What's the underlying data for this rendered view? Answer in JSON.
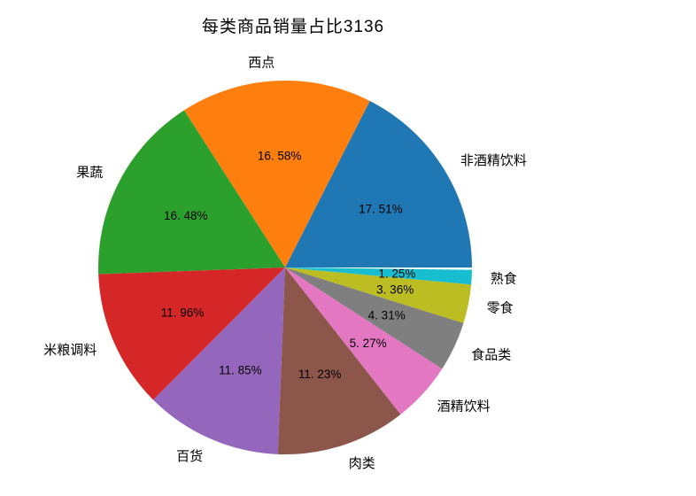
{
  "chart_data": {
    "type": "pie",
    "title": "每类商品销量占比3136",
    "legend": "none",
    "grid": "off",
    "start_angle_deg": 0,
    "direction": "counterclockwise",
    "total_pct_shown": 99.8,
    "slices": [
      {
        "label": "非酒精饮料",
        "value": 17.51,
        "pct_label": "17. 51%",
        "color": "#1f77b4"
      },
      {
        "label": "西点",
        "value": 16.58,
        "pct_label": "16. 58%",
        "color": "#ff7f0e"
      },
      {
        "label": "果蔬",
        "value": 16.48,
        "pct_label": "16. 48%",
        "color": "#2ca02c"
      },
      {
        "label": "米粮调料",
        "value": 11.96,
        "pct_label": "11. 96%",
        "color": "#d62728"
      },
      {
        "label": "百货",
        "value": 11.85,
        "pct_label": "11. 85%",
        "color": "#9467bd"
      },
      {
        "label": "肉类",
        "value": 11.23,
        "pct_label": "11. 23%",
        "color": "#8c564b"
      },
      {
        "label": "酒精饮料",
        "value": 5.27,
        "pct_label": "5. 27%",
        "color": "#e377c2"
      },
      {
        "label": "食品类",
        "value": 4.31,
        "pct_label": "4. 31%",
        "color": "#7f7f7f"
      },
      {
        "label": "零食",
        "value": 3.36,
        "pct_label": "3. 36%",
        "color": "#bcbd22"
      },
      {
        "label": "熟食",
        "value": 1.25,
        "pct_label": "1. 25%",
        "color": "#17becf"
      }
    ]
  },
  "colors": {
    "background": "#ffffff",
    "text": "#000000"
  }
}
